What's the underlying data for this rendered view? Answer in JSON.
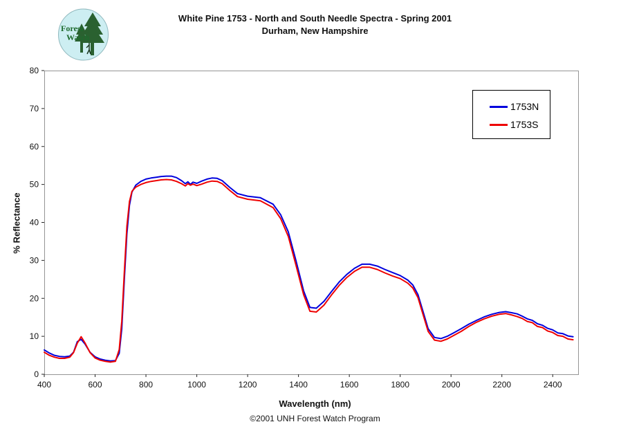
{
  "header": {
    "logo": {
      "line1": "Forest",
      "line2": "Watch"
    }
  },
  "footer": {
    "caption": "©2001 UNH Forest Watch Program"
  },
  "chart_data": {
    "type": "line",
    "title": "White Pine 1753 - North and South Needle Spectra - Spring 2001",
    "subtitle": "Durham, New Hampshire",
    "xlabel": "Wavelength (nm)",
    "ylabel": "% Reflectance",
    "xlim": [
      400,
      2500
    ],
    "ylim": [
      0,
      80
    ],
    "x_ticks": [
      400,
      600,
      800,
      1000,
      1200,
      1400,
      1600,
      1800,
      2000,
      2200,
      2400
    ],
    "y_ticks": [
      0,
      10,
      20,
      30,
      40,
      50,
      60,
      70,
      80
    ],
    "grid": false,
    "frame_color": "#949494",
    "legend": {
      "position": "top-right",
      "entries": [
        {
          "name": "1753N",
          "color": "#0000dd"
        },
        {
          "name": "1753S",
          "color": "#ee0000"
        }
      ]
    },
    "x": [
      400,
      420,
      440,
      460,
      480,
      500,
      515,
      530,
      545,
      560,
      580,
      600,
      620,
      640,
      660,
      680,
      695,
      705,
      715,
      725,
      735,
      745,
      760,
      780,
      800,
      820,
      840,
      860,
      880,
      900,
      920,
      940,
      955,
      965,
      975,
      985,
      1000,
      1020,
      1040,
      1060,
      1080,
      1100,
      1130,
      1160,
      1200,
      1250,
      1300,
      1330,
      1360,
      1390,
      1420,
      1445,
      1470,
      1500,
      1530,
      1560,
      1590,
      1620,
      1650,
      1680,
      1710,
      1740,
      1770,
      1800,
      1830,
      1850,
      1870,
      1890,
      1910,
      1935,
      1960,
      1985,
      2010,
      2040,
      2070,
      2100,
      2130,
      2160,
      2190,
      2215,
      2240,
      2260,
      2280,
      2300,
      2320,
      2340,
      2360,
      2380,
      2400,
      2420,
      2440,
      2460,
      2480
    ],
    "series": [
      {
        "name": "1753N",
        "color": "#0000dd",
        "values": [
          6.4,
          5.6,
          5.0,
          4.7,
          4.6,
          4.8,
          5.8,
          8.6,
          9.2,
          8.0,
          5.8,
          4.6,
          4.0,
          3.7,
          3.5,
          3.6,
          5.5,
          12,
          25,
          37,
          44.5,
          48.0,
          49.8,
          50.8,
          51.4,
          51.7,
          51.9,
          52.1,
          52.2,
          52.2,
          51.8,
          51.0,
          50.2,
          50.7,
          50.0,
          50.6,
          50.3,
          50.9,
          51.4,
          51.7,
          51.6,
          51.0,
          49.2,
          47.6,
          46.9,
          46.5,
          44.8,
          42.0,
          37.5,
          30.0,
          22.0,
          17.6,
          17.4,
          19.2,
          21.8,
          24.3,
          26.3,
          27.9,
          29.0,
          29.0,
          28.5,
          27.6,
          26.8,
          26.0,
          24.8,
          23.5,
          21.0,
          16.5,
          12.0,
          9.7,
          9.4,
          10.0,
          10.9,
          12.0,
          13.2,
          14.2,
          15.1,
          15.8,
          16.3,
          16.5,
          16.2,
          15.9,
          15.3,
          14.6,
          14.2,
          13.3,
          12.9,
          12.1,
          11.7,
          10.9,
          10.7,
          10.1,
          9.9
        ]
      },
      {
        "name": "1753S",
        "color": "#ee0000",
        "values": [
          5.8,
          5.0,
          4.5,
          4.2,
          4.2,
          4.5,
          5.7,
          8.2,
          9.9,
          8.3,
          5.7,
          4.3,
          3.7,
          3.4,
          3.2,
          3.4,
          6.5,
          14,
          27,
          39,
          45.5,
          48.2,
          49.3,
          50.0,
          50.5,
          50.8,
          51.0,
          51.2,
          51.3,
          51.2,
          50.8,
          50.2,
          49.6,
          50.2,
          49.8,
          50.1,
          49.7,
          50.1,
          50.6,
          50.9,
          50.8,
          50.2,
          48.4,
          46.8,
          46.1,
          45.7,
          43.9,
          41.0,
          36.3,
          28.8,
          21.0,
          16.6,
          16.4,
          18.2,
          20.9,
          23.4,
          25.5,
          27.1,
          28.2,
          28.2,
          27.6,
          26.7,
          25.9,
          25.2,
          24.0,
          22.7,
          20.2,
          15.7,
          11.3,
          9.0,
          8.7,
          9.3,
          10.2,
          11.3,
          12.6,
          13.7,
          14.6,
          15.3,
          15.8,
          16.0,
          15.6,
          15.2,
          14.7,
          13.9,
          13.6,
          12.6,
          12.3,
          11.4,
          11.0,
          10.2,
          10.0,
          9.3,
          9.1
        ]
      }
    ]
  }
}
